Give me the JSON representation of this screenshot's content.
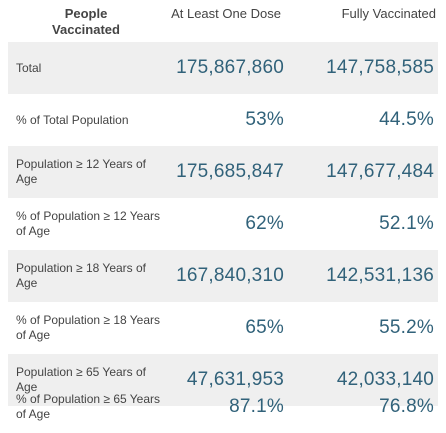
{
  "header": {
    "people_label": "People\nVaccinated",
    "col1": "At Least One Dose",
    "col2": "Fully Vaccinated"
  },
  "rows": [
    {
      "label": "Total",
      "one_dose": "175,867,860",
      "fully": "147,758,585"
    },
    {
      "label": "% of Total Population",
      "one_dose": "53%",
      "fully": "44.5%"
    },
    {
      "label": "Population ≥ 12 Years of Age",
      "one_dose": "175,685,847",
      "fully": "147,677,484"
    },
    {
      "label": "% of Population ≥ 12 Years of Age",
      "one_dose": "62%",
      "fully": "52.1%"
    },
    {
      "label": "Population ≥ 18 Years of Age",
      "one_dose": "167,840,310",
      "fully": "142,531,136"
    },
    {
      "label": "% of Population ≥ 18 Years of Age",
      "one_dose": "65%",
      "fully": "55.2%"
    },
    {
      "label": "Population ≥ 65 Years of Age",
      "one_dose": "47,631,953",
      "fully": "42,033,140"
    },
    {
      "label": "% of Population ≥ 65 Years of Age",
      "one_dose": "87.1%",
      "fully": "76.8%"
    }
  ],
  "colors": {
    "value_text": "#31627a",
    "row_shade": "#efefef"
  }
}
